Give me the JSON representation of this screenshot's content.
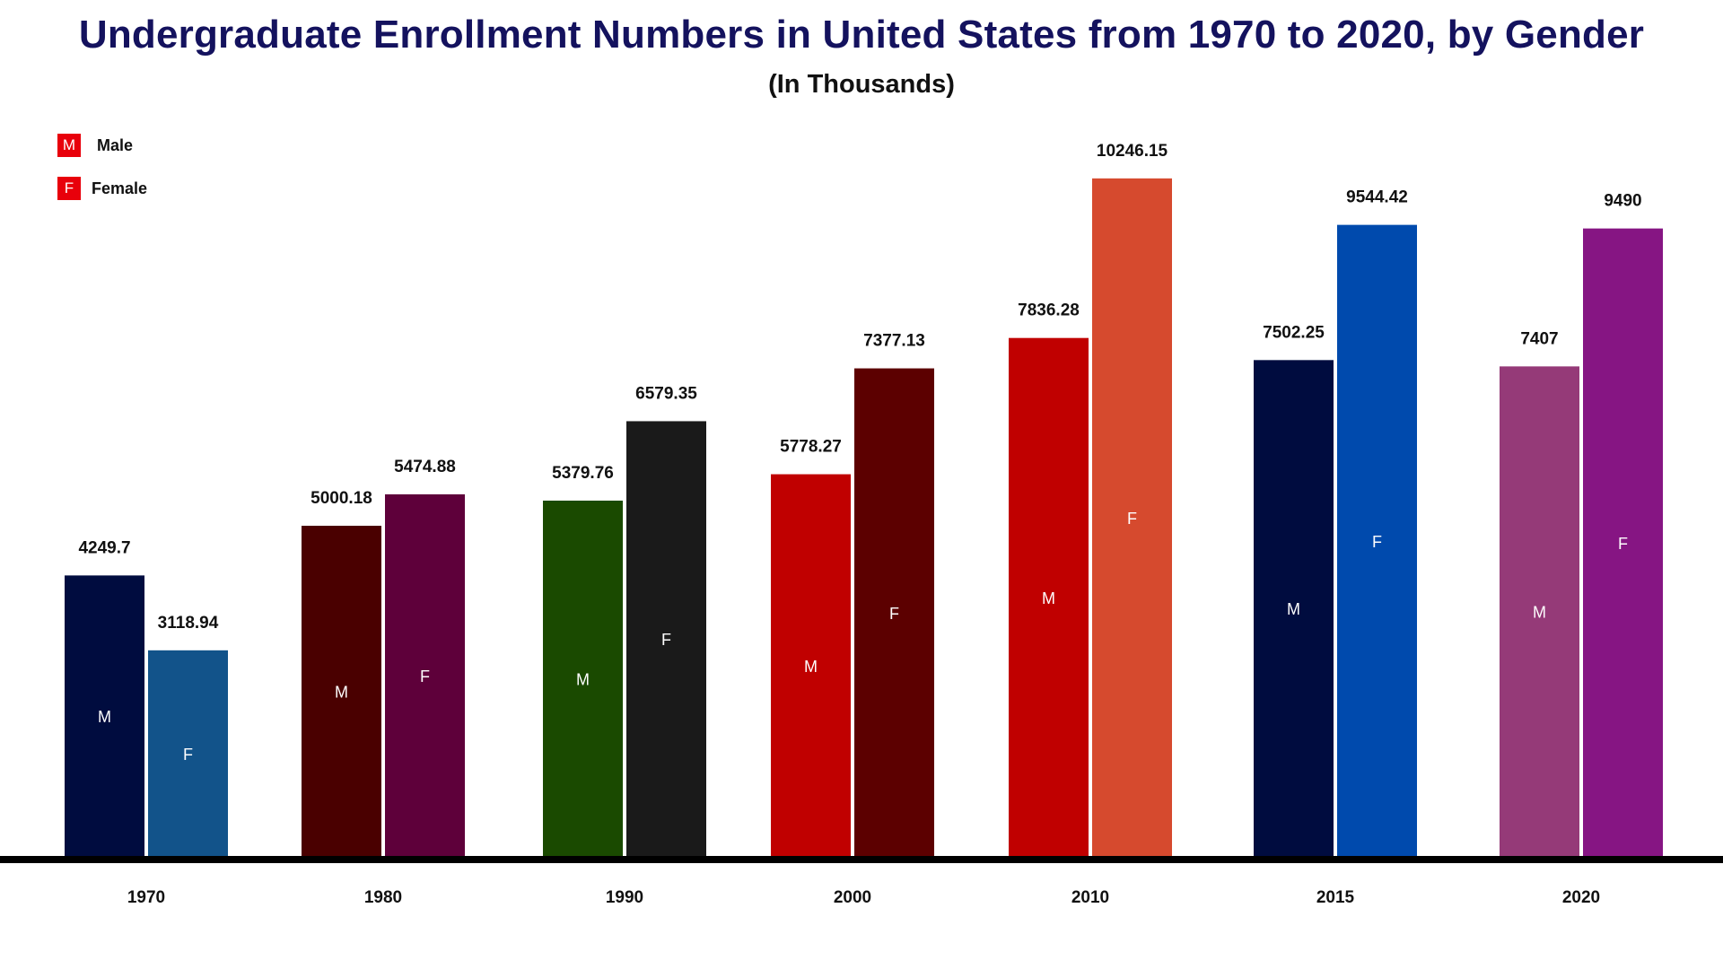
{
  "chart_data": {
    "type": "bar",
    "title": "Undergraduate Enrollment Numbers in United States from 1970 to 2020, by Gender",
    "subtitle": "(In Thousands)",
    "xlabel": "",
    "ylabel": "",
    "ylim": [
      0,
      11000
    ],
    "grid": false,
    "legend_position": "top-left",
    "categories": [
      "1970",
      "1980",
      "1990",
      "2000",
      "2010",
      "2015",
      "2020"
    ],
    "series": [
      {
        "name": "Male",
        "marker": "M",
        "values": [
          4249.7,
          5000.18,
          5379.76,
          5778.27,
          7836.28,
          7502.25,
          7407
        ],
        "value_labels": [
          "4249.7",
          "5000.18",
          "5379.76",
          "5778.27",
          "7836.28",
          "7502.25",
          "7407"
        ],
        "colors": [
          "#000c3f",
          "#4a0000",
          "#1a4a00",
          "#c00000",
          "#c00000",
          "#000c3f",
          "#953a78"
        ]
      },
      {
        "name": "Female",
        "marker": "F",
        "values": [
          3118.94,
          5474.88,
          6579.35,
          7377.13,
          10246.15,
          9544.42,
          9490
        ],
        "value_labels": [
          "3118.94",
          "5474.88",
          "6579.35",
          "7377.13",
          "10246.15",
          "9544.42",
          "9490"
        ],
        "colors": [
          "#12538a",
          "#5e003a",
          "#1a1a1a",
          "#5c0000",
          "#d64a2e",
          "#004aad",
          "#861583"
        ]
      }
    ],
    "legend": [
      {
        "marker": "M",
        "label": "Male",
        "color": "#e8000b"
      },
      {
        "marker": "F",
        "label": "Female",
        "color": "#e8000b"
      }
    ]
  }
}
